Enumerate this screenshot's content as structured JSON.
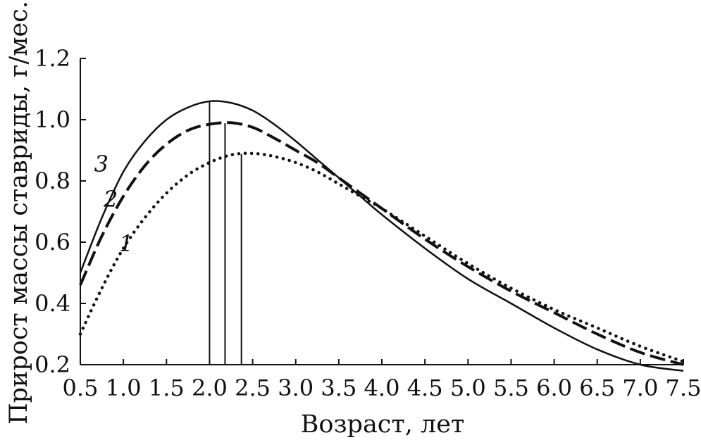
{
  "chart_data": {
    "type": "line",
    "xlabel": "Возраст, лет",
    "ylabel": "Прирост массы ставриды, г/мес.",
    "xlim": [
      0.5,
      7.5
    ],
    "ylim": [
      0.2,
      1.2
    ],
    "x_ticks": [
      "0.5",
      "1.0",
      "1.5",
      "2.0",
      "2.5",
      "3.0",
      "3.5",
      "4.0",
      "4.5",
      "5.0",
      "5.5",
      "6.0",
      "6.5",
      "7.0",
      "7.5"
    ],
    "y_ticks": [
      "0.2",
      "0.4",
      "0.6",
      "0.8",
      "1.0",
      "1.2"
    ],
    "grid": false,
    "x": [
      0.5,
      0.75,
      1.0,
      1.25,
      1.5,
      1.75,
      2.0,
      2.25,
      2.5,
      2.75,
      3.0,
      3.25,
      3.5,
      3.75,
      4.0,
      4.5,
      5.0,
      5.5,
      6.0,
      6.5,
      7.0,
      7.5
    ],
    "series": [
      {
        "name": "1",
        "style": "dotted",
        "color": "#111111",
        "values": [
          0.3,
          0.45,
          0.58,
          0.68,
          0.76,
          0.82,
          0.86,
          0.885,
          0.89,
          0.88,
          0.86,
          0.83,
          0.79,
          0.75,
          0.71,
          0.62,
          0.53,
          0.45,
          0.38,
          0.32,
          0.26,
          0.21
        ],
        "peak_x": 2.37
      },
      {
        "name": "2",
        "style": "dashed",
        "color": "#111111",
        "values": [
          0.46,
          0.62,
          0.75,
          0.85,
          0.92,
          0.965,
          0.985,
          0.99,
          0.975,
          0.94,
          0.9,
          0.86,
          0.81,
          0.76,
          0.71,
          0.61,
          0.52,
          0.44,
          0.37,
          0.3,
          0.24,
          0.2
        ],
        "peak_x": 2.18
      },
      {
        "name": "3",
        "style": "solid",
        "color": "#111111",
        "values": [
          0.5,
          0.68,
          0.83,
          0.93,
          1.0,
          1.04,
          1.06,
          1.055,
          1.03,
          0.985,
          0.93,
          0.87,
          0.81,
          0.75,
          0.69,
          0.58,
          0.48,
          0.4,
          0.32,
          0.25,
          0.2,
          0.18
        ],
        "peak_x": 2.0
      }
    ]
  }
}
